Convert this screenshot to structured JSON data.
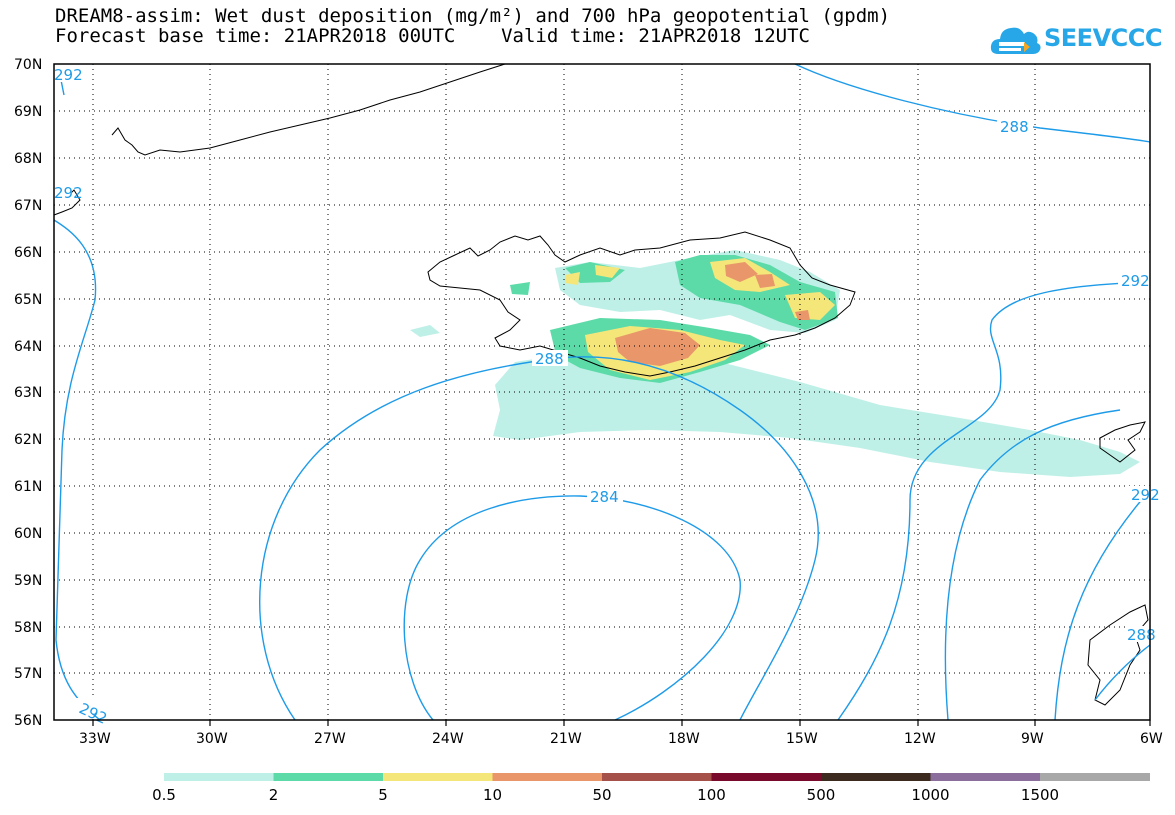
{
  "header": {
    "title_line1": "DREAM8-assim: Wet dust deposition (mg/m²) and 700 hPa geopotential (gpdm)",
    "title_line2": "Forecast base time: 21APR2018 00UTC    Valid time: 21APR2018 12UTC"
  },
  "logo": {
    "text": "SEEVCCC",
    "color": "#27a7e7"
  },
  "map": {
    "lat_labels": [
      "70N",
      "69N",
      "68N",
      "67N",
      "66N",
      "65N",
      "64N",
      "63N",
      "62N",
      "61N",
      "60N",
      "59N",
      "58N",
      "57N",
      "56N"
    ],
    "lon_labels": [
      "33W",
      "30W",
      "27W",
      "24W",
      "21W",
      "18W",
      "15W",
      "12W",
      "9W",
      "6W"
    ],
    "contour_labels": [
      "288",
      "288",
      "284",
      "292",
      "292",
      "292",
      "292",
      "292",
      "288"
    ],
    "contour_color": "#1e9be8"
  },
  "legend": {
    "labels": [
      "0.5",
      "2",
      "5",
      "10",
      "50",
      "100",
      "500",
      "1000",
      "1500"
    ],
    "colors": [
      "#bff0e8",
      "#5cdba8",
      "#f5e67a",
      "#e8966a",
      "#a55048",
      "#7a0a2c",
      "#3c2a1e",
      "#8c6e9c",
      "#a8a8a8"
    ]
  }
}
